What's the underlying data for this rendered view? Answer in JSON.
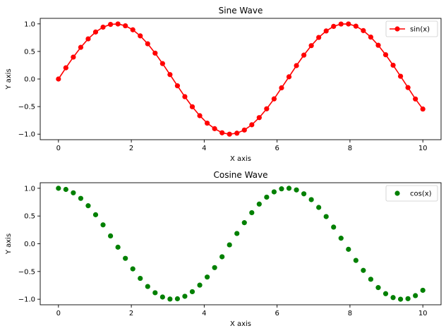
{
  "chart_data": [
    {
      "type": "line",
      "title": "Sine Wave",
      "xlabel": "X axis",
      "ylabel": "Y axis",
      "xlim": [
        -0.5,
        10.5
      ],
      "ylim": [
        -1.1,
        1.1
      ],
      "xticks": [
        0,
        2,
        4,
        6,
        8,
        10
      ],
      "xtick_labels": [
        "0",
        "2",
        "4",
        "6",
        "8",
        "10"
      ],
      "yticks": [
        -1.0,
        -0.5,
        0.0,
        0.5,
        1.0
      ],
      "ytick_labels": [
        "−1.0",
        "−0.5",
        "0.0",
        "0.5",
        "1.0"
      ],
      "grid": false,
      "legend_position": "upper-right",
      "series": [
        {
          "name": "sin(x)",
          "color": "#ff0000",
          "marker": "circle",
          "linestyle": "solid",
          "x": [
            0.0,
            0.204,
            0.408,
            0.612,
            0.816,
            1.02,
            1.224,
            1.429,
            1.633,
            1.837,
            2.041,
            2.245,
            2.449,
            2.653,
            2.857,
            3.061,
            3.265,
            3.469,
            3.673,
            3.878,
            4.082,
            4.286,
            4.49,
            4.694,
            4.898,
            5.102,
            5.306,
            5.51,
            5.714,
            5.918,
            6.122,
            6.327,
            6.531,
            6.735,
            6.939,
            7.143,
            7.347,
            7.551,
            7.755,
            7.959,
            8.163,
            8.367,
            8.571,
            8.776,
            8.98,
            9.184,
            9.388,
            9.592,
            9.796,
            10.0
          ],
          "y": [
            0.0,
            0.203,
            0.397,
            0.574,
            0.728,
            0.852,
            0.94,
            0.99,
            0.998,
            0.965,
            0.892,
            0.782,
            0.639,
            0.469,
            0.28,
            0.08,
            -0.123,
            -0.32,
            -0.503,
            -0.665,
            -0.8,
            -0.9,
            -0.975,
            -1.0,
            -0.982,
            -0.925,
            -0.83,
            -0.7,
            -0.54,
            -0.36,
            -0.16,
            0.04,
            0.243,
            0.433,
            0.605,
            0.754,
            0.871,
            0.954,
            0.997,
            0.998,
            0.958,
            0.878,
            0.76,
            0.612,
            0.44,
            0.25,
            0.05,
            -0.155,
            -0.362,
            -0.544
          ]
        }
      ]
    },
    {
      "type": "scatter",
      "title": "Cosine Wave",
      "xlabel": "X axis",
      "ylabel": "Y axis",
      "xlim": [
        -0.5,
        10.5
      ],
      "ylim": [
        -1.1,
        1.1
      ],
      "xticks": [
        0,
        2,
        4,
        6,
        8,
        10
      ],
      "xtick_labels": [
        "0",
        "2",
        "4",
        "6",
        "8",
        "10"
      ],
      "yticks": [
        -1.0,
        -0.5,
        0.0,
        0.5,
        1.0
      ],
      "ytick_labels": [
        "−1.0",
        "−0.5",
        "0.0",
        "0.5",
        "1.0"
      ],
      "grid": false,
      "legend_position": "upper-right",
      "series": [
        {
          "name": "cos(x)",
          "color": "#008000",
          "marker": "circle",
          "x": [
            0.0,
            0.204,
            0.408,
            0.612,
            0.816,
            1.02,
            1.224,
            1.429,
            1.633,
            1.837,
            2.041,
            2.245,
            2.449,
            2.653,
            2.857,
            3.061,
            3.265,
            3.469,
            3.673,
            3.878,
            4.082,
            4.286,
            4.49,
            4.694,
            4.898,
            5.102,
            5.306,
            5.51,
            5.714,
            5.918,
            6.122,
            6.327,
            6.531,
            6.735,
            6.939,
            7.143,
            7.347,
            7.551,
            7.755,
            7.959,
            8.163,
            8.367,
            8.571,
            8.776,
            8.98,
            9.184,
            9.388,
            9.592,
            9.796,
            10.0
          ],
          "y": [
            1.0,
            0.979,
            0.918,
            0.818,
            0.685,
            0.523,
            0.34,
            0.141,
            -0.062,
            -0.263,
            -0.453,
            -0.624,
            -0.77,
            -0.883,
            -0.96,
            -0.997,
            -0.992,
            -0.947,
            -0.864,
            -0.746,
            -0.6,
            -0.43,
            -0.235,
            -0.02,
            0.185,
            0.38,
            0.56,
            0.715,
            0.84,
            0.935,
            0.99,
            1.0,
            0.97,
            0.9,
            0.795,
            0.655,
            0.49,
            0.3,
            0.1,
            -0.1,
            -0.3,
            -0.48,
            -0.64,
            -0.79,
            -0.9,
            -0.97,
            -1.0,
            -0.99,
            -0.935,
            -0.839
          ]
        }
      ]
    }
  ]
}
